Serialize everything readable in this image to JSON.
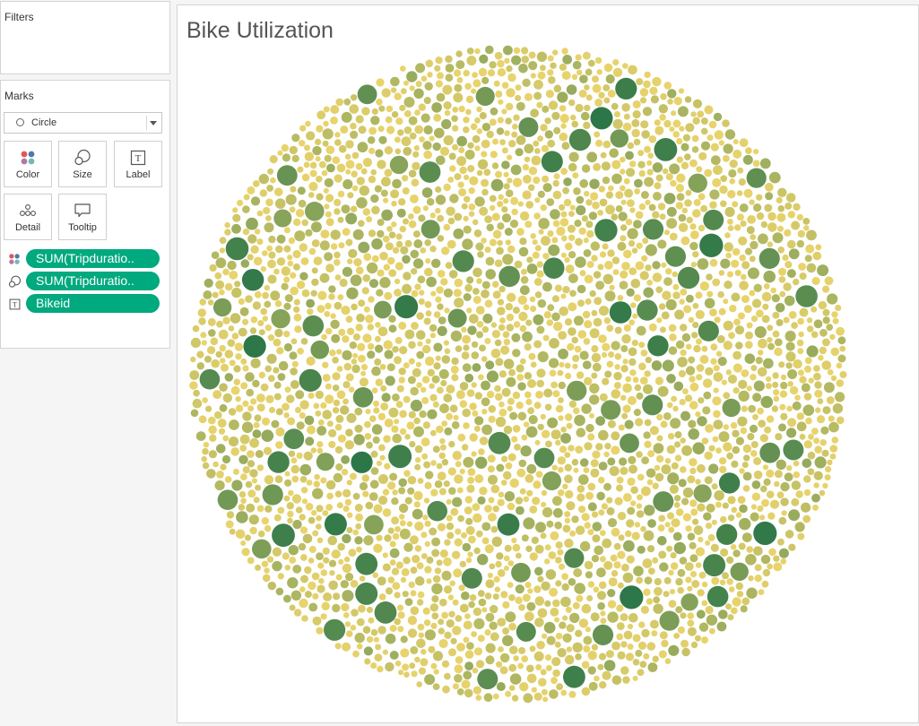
{
  "filters": {
    "title": "Filters"
  },
  "marks": {
    "title": "Marks",
    "mark_type": {
      "selected": "Circle",
      "icon": "circle-icon"
    },
    "buttons": {
      "color": {
        "label": "Color",
        "icon": "color-dots-icon"
      },
      "size": {
        "label": "Size",
        "icon": "size-icon"
      },
      "label": {
        "label": "Label",
        "icon": "label-t-icon"
      },
      "detail": {
        "label": "Detail",
        "icon": "detail-dots-icon"
      },
      "tooltip": {
        "label": "Tooltip",
        "icon": "tooltip-bubble-icon"
      }
    },
    "pills": [
      {
        "encoding": "color",
        "icon": "color-dots-icon",
        "text": "SUM(Tripduratio.."
      },
      {
        "encoding": "size",
        "icon": "size-icon",
        "text": "SUM(Tripduratio.."
      },
      {
        "encoding": "label",
        "icon": "label-t-icon",
        "text": "Bikeid"
      }
    ]
  },
  "colors": {
    "pill": "#00a97e",
    "low": "#e6cf60",
    "high": "#1a6a38"
  },
  "chart_data": {
    "type": "bubble",
    "title": "Bike Utilization",
    "color_encoding": "SUM(Tripduration)",
    "size_encoding": "SUM(Tripduration)",
    "label_encoding": "Bikeid",
    "color_scale": {
      "low": "#e6cf60",
      "high": "#1a6a38"
    },
    "estimated_mark_count": 8000
  }
}
